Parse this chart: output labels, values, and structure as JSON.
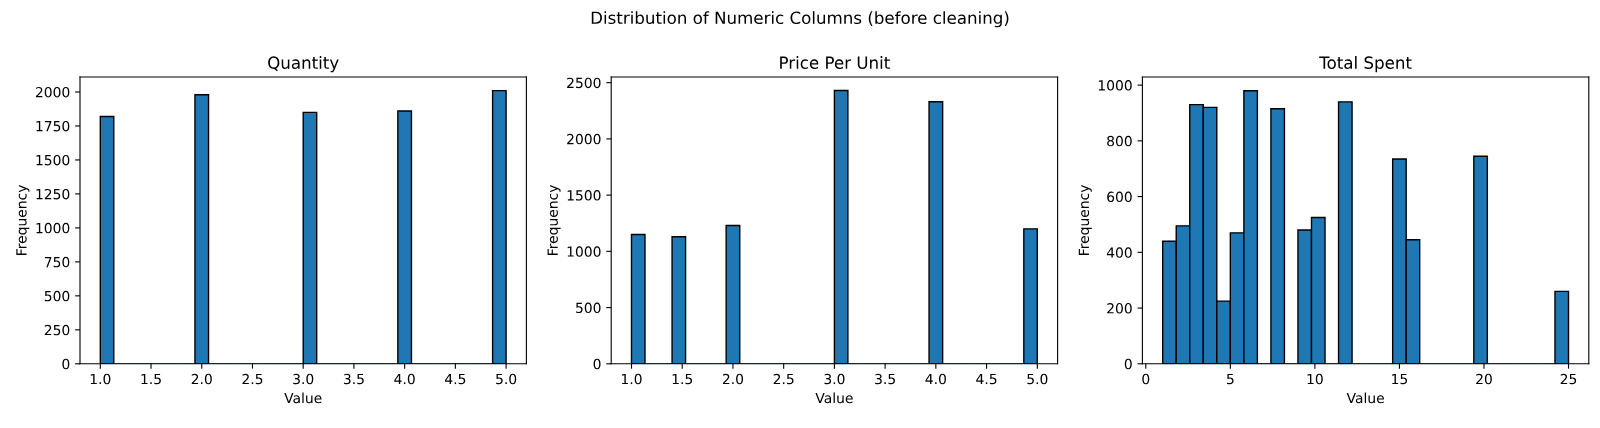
{
  "chart_data": [
    {
      "type": "histogram",
      "annotations": [
        "Distribution of Numeric Columns (before cleaning)"
      ],
      "title": "Quantity",
      "xlabel": "Value",
      "ylabel": "Frequency",
      "color": "#1f77b4",
      "bins": [
        1,
        1.133,
        1.267,
        1.4,
        1.533,
        1.667,
        1.8,
        1.933,
        2.067,
        2.2,
        2.333,
        2.467,
        2.6,
        2.733,
        2.867,
        3,
        3.133,
        3.267,
        3.4,
        3.533,
        3.667,
        3.8,
        3.933,
        4.067,
        4.2,
        4.333,
        4.467,
        4.6,
        4.733,
        4.867,
        5
      ],
      "values": [
        1820,
        0,
        0,
        0,
        0,
        0,
        0,
        1980,
        0,
        0,
        0,
        0,
        0,
        0,
        0,
        1850,
        0,
        0,
        0,
        0,
        0,
        0,
        1860,
        0,
        0,
        0,
        0,
        0,
        0,
        2010
      ],
      "xlim": [
        0.8,
        5.2
      ],
      "xticks": [
        {
          "value": 1,
          "label": "1.0"
        },
        1.5,
        {
          "value": 2,
          "label": "2.0"
        },
        2.5,
        {
          "value": 3,
          "label": "3.0"
        },
        3.5,
        {
          "value": 4,
          "label": "4.0"
        },
        4.5,
        {
          "value": 5,
          "label": "5.0"
        }
      ],
      "ylim": [
        0,
        2110
      ],
      "yticks": [
        0,
        250,
        500,
        750,
        1000,
        1250,
        1500,
        1750,
        2000
      ]
    },
    {
      "type": "histogram",
      "title": "Price Per Unit",
      "xlabel": "Value",
      "ylabel": "Frequency",
      "color": "#1f77b4",
      "bins": [
        1,
        1.133,
        1.267,
        1.4,
        1.533,
        1.667,
        1.8,
        1.933,
        2.067,
        2.2,
        2.333,
        2.467,
        2.6,
        2.733,
        2.867,
        3,
        3.133,
        3.267,
        3.4,
        3.533,
        3.667,
        3.8,
        3.933,
        4.067,
        4.2,
        4.333,
        4.467,
        4.6,
        4.733,
        4.867,
        5
      ],
      "values": [
        1150,
        0,
        0,
        1130,
        0,
        0,
        0,
        1230,
        0,
        0,
        0,
        0,
        0,
        0,
        0,
        2430,
        0,
        0,
        0,
        0,
        0,
        0,
        2330,
        0,
        0,
        0,
        0,
        0,
        0,
        1200
      ],
      "xlim": [
        0.8,
        5.2
      ],
      "xticks": [
        {
          "value": 1,
          "label": "1.0"
        },
        1.5,
        {
          "value": 2,
          "label": "2.0"
        },
        2.5,
        {
          "value": 3,
          "label": "3.0"
        },
        3.5,
        {
          "value": 4,
          "label": "4.0"
        },
        4.5,
        {
          "value": 5,
          "label": "5.0"
        }
      ],
      "ylim": [
        0,
        2550
      ],
      "yticks": [
        0,
        500,
        1000,
        1500,
        2000,
        2500
      ]
    },
    {
      "type": "histogram",
      "title": "Total Spent",
      "xlabel": "Value",
      "ylabel": "Frequency",
      "color": "#1f77b4",
      "bins": [
        1,
        1.8,
        2.6,
        3.4,
        4.2,
        5,
        5.8,
        6.6,
        7.4,
        8.2,
        9,
        9.8,
        10.6,
        11.4,
        12.2,
        13,
        13.8,
        14.6,
        15.4,
        16.2,
        17,
        17.8,
        18.6,
        19.4,
        20.2,
        21,
        21.8,
        22.6,
        23.4,
        24.2,
        25
      ],
      "values": [
        440,
        495,
        930,
        920,
        225,
        470,
        980,
        0,
        915,
        0,
        480,
        525,
        0,
        940,
        0,
        0,
        0,
        735,
        445,
        0,
        0,
        0,
        0,
        745,
        0,
        0,
        0,
        0,
        0,
        260
      ],
      "xlim": [
        -0.2,
        26.2
      ],
      "xticks": [
        0,
        5,
        10,
        15,
        20,
        25
      ],
      "ylim": [
        0,
        1029
      ],
      "yticks": [
        0,
        200,
        400,
        600,
        800,
        1000
      ]
    }
  ]
}
